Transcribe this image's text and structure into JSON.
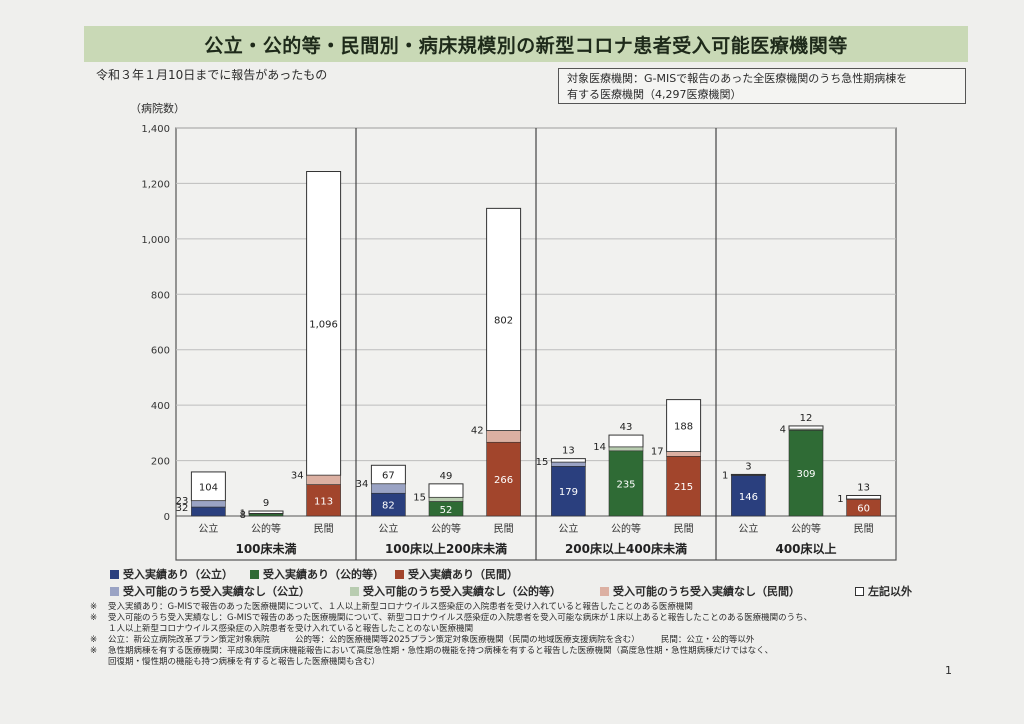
{
  "title": "公立・公的等・民間別・病床規模別の新型コロナ患者受入可能医療機関等",
  "subtitle": "令和３年１月10日までに報告があったもの",
  "target_box": {
    "line1": "対象医療機関：G-MISで報告のあった全医療機関のうち急性期病棟を",
    "line2": "有する医療機関（4,297医療機関）"
  },
  "ylabel": "（病院数）",
  "page_number": "1",
  "colors": {
    "public_accept": "#2a3f7e",
    "public_noaccept": "#9aa3c4",
    "quasi_accept": "#2f6b35",
    "quasi_noaccept": "#b8ccb0",
    "private_accept": "#a2452c",
    "private_noaccept": "#dcb0a2",
    "other": "#ffffff"
  },
  "chart_data": {
    "type": "bar",
    "stacked": true,
    "ylabel": "（病院数）",
    "ylim": [
      0,
      1400
    ],
    "yticks": [
      0,
      200,
      400,
      600,
      800,
      1000,
      1200,
      1400
    ],
    "yticklabels": [
      "0",
      "200",
      "400",
      "600",
      "800",
      "1,000",
      "1,200",
      "1,400"
    ],
    "grid": true,
    "groups": [
      {
        "label": "100床未満",
        "bars": [
          {
            "category": "公立",
            "type": "public",
            "accept": 32,
            "noaccept": 23,
            "other": 104,
            "labels": {
              "accept": "32",
              "noaccept": "23",
              "other": "104"
            }
          },
          {
            "category": "公的等",
            "type": "quasi",
            "accept": 8,
            "noaccept": 1,
            "other": 9,
            "labels": {
              "accept": "8",
              "noaccept": "1",
              "other": "9"
            }
          },
          {
            "category": "民間",
            "type": "private",
            "accept": 113,
            "noaccept": 34,
            "other": 1096,
            "labels": {
              "accept": "113",
              "noaccept": "34",
              "other": "1,096"
            }
          }
        ]
      },
      {
        "label": "100床以上200床未満",
        "bars": [
          {
            "category": "公立",
            "type": "public",
            "accept": 82,
            "noaccept": 34,
            "other": 67,
            "labels": {
              "accept": "82",
              "noaccept": "34",
              "other": "67"
            }
          },
          {
            "category": "公的等",
            "type": "quasi",
            "accept": 52,
            "noaccept": 15,
            "other": 49,
            "labels": {
              "accept": "52",
              "noaccept": "15",
              "other": "49"
            }
          },
          {
            "category": "民間",
            "type": "private",
            "accept": 266,
            "noaccept": 42,
            "other": 802,
            "labels": {
              "accept": "266",
              "noaccept": "42",
              "other": "802"
            }
          }
        ]
      },
      {
        "label": "200床以上400床未満",
        "bars": [
          {
            "category": "公立",
            "type": "public",
            "accept": 179,
            "noaccept": 15,
            "other": 13,
            "labels": {
              "accept": "179",
              "noaccept": "15",
              "other": "13"
            }
          },
          {
            "category": "公的等",
            "type": "quasi",
            "accept": 235,
            "noaccept": 14,
            "other": 43,
            "labels": {
              "accept": "235",
              "noaccept": "14",
              "other": "43"
            }
          },
          {
            "category": "民間",
            "type": "private",
            "accept": 215,
            "noaccept": 17,
            "other": 188,
            "labels": {
              "accept": "215",
              "noaccept": "17",
              "other": "188"
            }
          }
        ]
      },
      {
        "label": "400床以上",
        "bars": [
          {
            "category": "公立",
            "type": "public",
            "accept": 146,
            "noaccept": 1,
            "other": 3,
            "labels": {
              "accept": "146",
              "noaccept": "1",
              "other": "3"
            }
          },
          {
            "category": "公的等",
            "type": "quasi",
            "accept": 309,
            "noaccept": 4,
            "other": 12,
            "labels": {
              "accept": "309",
              "noaccept": "4",
              "other": "12"
            }
          },
          {
            "category": "民間",
            "type": "private",
            "accept": 60,
            "noaccept": 1,
            "other": 13,
            "labels": {
              "accept": "60",
              "noaccept": "1",
              "other": "13"
            }
          }
        ]
      }
    ],
    "legend": [
      {
        "label": "受入実績あり（公立）",
        "color": "#2a3f7e"
      },
      {
        "label": "受入実績あり（公的等）",
        "color": "#2f6b35"
      },
      {
        "label": "受入実績あり（民間）",
        "color": "#a2452c"
      },
      {
        "label": "受入可能のうち受入実績なし（公立）",
        "color": "#9aa3c4"
      },
      {
        "label": "受入可能のうち受入実績なし（公的等）",
        "color": "#b8ccb0"
      },
      {
        "label": "受入可能のうち受入実績なし（民間）",
        "color": "#dcb0a2"
      },
      {
        "label": "左記以外",
        "color": "#ffffff"
      }
    ]
  },
  "notes": [
    {
      "mark": "※",
      "text": "受入実績あり：G-MISで報告のあった医療機関について、１人以上新型コロナウイルス感染症の入院患者を受け入れていると報告したことのある医療機関"
    },
    {
      "mark": "※",
      "text": "受入可能のうち受入実績なし：G-MISで報告のあった医療機関について、新型コロナウイルス感染症の入院患者を受入可能な病床が１床以上あると報告したことのある医療機関のうち、"
    },
    {
      "mark": "",
      "text": "１人以上新型コロナウイルス感染症の入院患者を受け入れていると報告したことのない医療機関"
    },
    {
      "mark": "※",
      "text": "公立：新公立病院改革プラン策定対象病院　　　公的等：公的医療機関等2025プラン策定対象医療機関（民間の地域医療支援病院を含む）　　　民間：公立・公的等以外"
    },
    {
      "mark": "※",
      "text": "急性期病棟を有する医療機関：平成30年度病床機能報告において高度急性期・急性期の機能を持つ病棟を有すると報告した医療機関（高度急性期・急性期病棟だけではなく、"
    },
    {
      "mark": "",
      "text": "回復期・慢性期の機能も持つ病棟を有すると報告した医療機関も含む）"
    }
  ]
}
